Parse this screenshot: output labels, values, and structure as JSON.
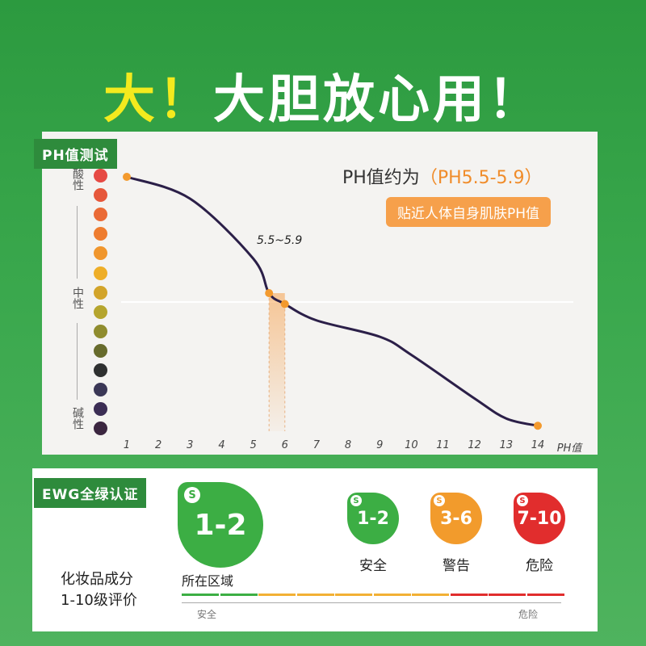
{
  "headline": {
    "accent": "大！",
    "main": "大胆放心用！"
  },
  "ph_section": {
    "tag": "PH值测试",
    "acid_label": "酸性",
    "neutral_label": "中性",
    "alkaline_label": "碱性",
    "color_dots": [
      "#e64a44",
      "#e6573b",
      "#ea6a36",
      "#ee7c2f",
      "#f0962d",
      "#eeae28",
      "#d2a42a",
      "#b5a52e",
      "#8f8c2e",
      "#676b2c",
      "#2e3030",
      "#3a3756",
      "#3b2d54",
      "#3b2640"
    ],
    "callout_prefix": "PH值约为",
    "callout_value": "（PH5.5-5.9）",
    "pill_text": "贴近人体自身肌肤PH值",
    "range_label": "5.5~5.9",
    "x_ticks": [
      "1",
      "2",
      "3",
      "4",
      "5",
      "6",
      "7",
      "8",
      "9",
      "10",
      "11",
      "12",
      "13",
      "14"
    ],
    "x_unit": "PH值"
  },
  "chart_data": {
    "type": "line",
    "x": [
      1,
      3,
      5,
      5.5,
      6,
      7,
      9,
      10,
      12,
      13,
      14
    ],
    "y": [
      14,
      12.8,
      9.5,
      7.6,
      7.0,
      6.1,
      5.2,
      4.2,
      1.8,
      0.7,
      0.3
    ],
    "highlight_range": [
      5.5,
      5.9
    ],
    "xlim": [
      1,
      14
    ],
    "ylabel_top": "酸性",
    "ylabel_mid": "中性",
    "ylabel_bottom": "碱性"
  },
  "ewg_section": {
    "tag": "EWG全绿认证",
    "big_badge": {
      "label": "1-2",
      "color": "#3cae44"
    },
    "area_label": "所在区域",
    "rating_title_line1": "化妆品成分",
    "rating_title_line2": "1-10级评价",
    "badges": [
      {
        "label": "1-2",
        "name": "安全",
        "color": "#3cae44"
      },
      {
        "label": "3-6",
        "name": "警告",
        "color": "#f29b2c"
      },
      {
        "label": "7-10",
        "name": "危险",
        "color": "#e12d2d"
      }
    ],
    "scale_left": "安全",
    "scale_right": "危险",
    "scale_colors": [
      "#3cae44",
      "#3cae44",
      "#f2b035",
      "#f2b035",
      "#f2b035",
      "#f2b035",
      "#f2b035",
      "#e12d2d",
      "#e12d2d",
      "#e12d2d"
    ]
  }
}
